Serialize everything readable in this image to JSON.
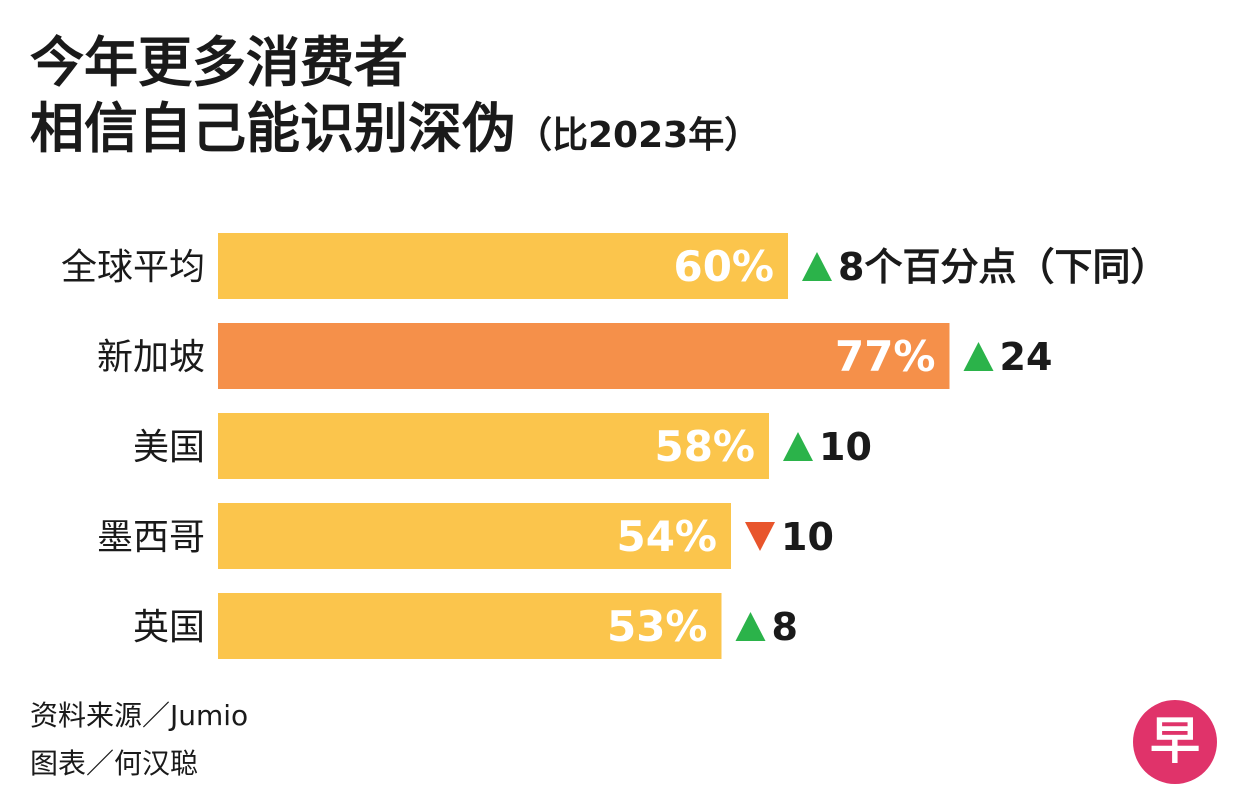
{
  "title": {
    "line1": "今年更多消费者",
    "line2": "相信自己能识别深伪",
    "subtitle": "（比2023年）"
  },
  "chart_data": {
    "type": "bar",
    "orientation": "horizontal",
    "categories": [
      "全球平均",
      "新加坡",
      "美国",
      "墨西哥",
      "英国"
    ],
    "values": [
      60,
      77,
      58,
      54,
      53
    ],
    "value_labels": [
      "60%",
      "77%",
      "58%",
      "54%",
      "53%"
    ],
    "changes": [
      {
        "direction": "up",
        "value": 8,
        "label": "8个百分点（下同）"
      },
      {
        "direction": "up",
        "value": 24,
        "label": "24"
      },
      {
        "direction": "up",
        "value": 10,
        "label": "10"
      },
      {
        "direction": "down",
        "value": 10,
        "label": "10"
      },
      {
        "direction": "up",
        "value": 8,
        "label": "8"
      }
    ],
    "highlight_index": 1,
    "unit": "%",
    "colors": {
      "bar": "#fbc54c",
      "highlight_bar": "#f5904a",
      "bar_label": "#ffffff",
      "up": "#2bb34a",
      "down": "#e8552c"
    }
  },
  "credits": {
    "source": "资料来源／Jumio",
    "graphic": "图表／何汉聪"
  },
  "logo": {
    "glyph": "早",
    "color": "#e0336a"
  }
}
